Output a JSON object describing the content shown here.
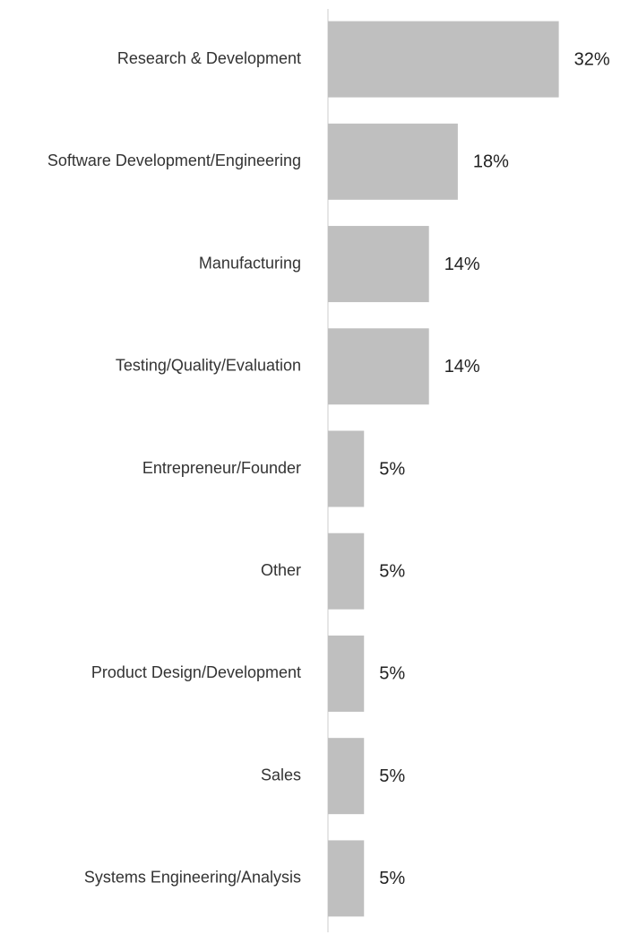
{
  "chart_data": {
    "type": "hbar",
    "categories": [
      "Research & Development",
      "Software Development/Engineering",
      "Manufacturing",
      "Testing/Quality/Evaluation",
      "Entrepreneur/Founder",
      "Other",
      "Product Design/Development",
      "Sales",
      "Systems Engineering/Analysis"
    ],
    "values": [
      32,
      18,
      14,
      14,
      5,
      5,
      5,
      5,
      5
    ],
    "value_labels": [
      "32%",
      "18%",
      "14%",
      "14%",
      "5%",
      "5%",
      "5%",
      "5%",
      "5%"
    ],
    "color": "#bfbfbf",
    "xlim": [
      0,
      40
    ]
  }
}
